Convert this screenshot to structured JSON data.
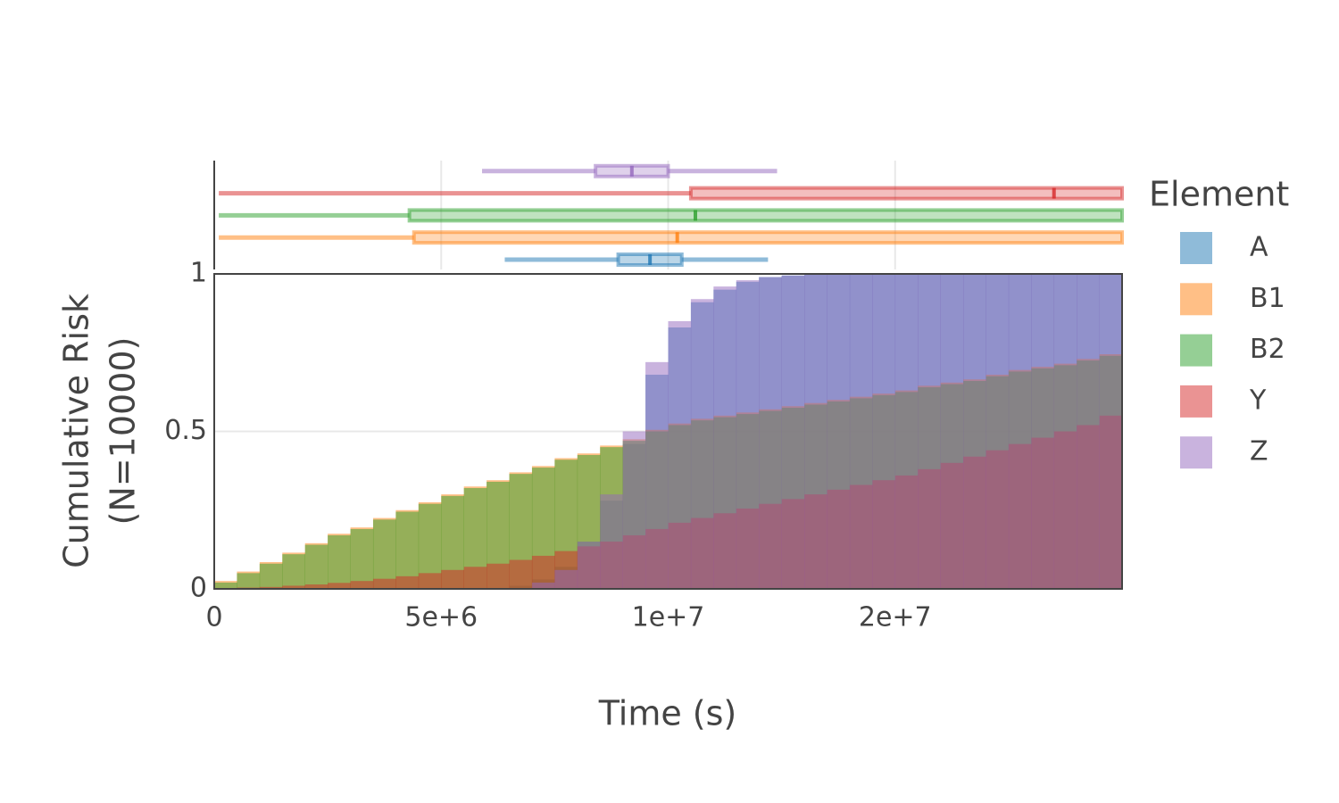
{
  "chart_data": {
    "type": "histogram",
    "cumulative": true,
    "xaxis_title": "Time (s)",
    "yaxis_title": [
      "Cumulative Risk",
      "(N=10000)"
    ],
    "legend_title": "Element",
    "legend": "right",
    "grid": true,
    "opacity": 0.5,
    "xlim": [
      0,
      20000000
    ],
    "xticks": [
      0,
      {
        "value": 5000000,
        "label": "5e+6"
      },
      {
        "value": 10000000,
        "label": "1e+7"
      },
      {
        "value": 15000000,
        "label": "2e+7"
      }
    ],
    "ylim": [
      0,
      1
    ],
    "yticks": [
      0,
      0.5,
      1
    ],
    "bins": [
      0,
      500000,
      1000000,
      1500000,
      2000000,
      2500000,
      3000000,
      3500000,
      4000000,
      4500000,
      5000000,
      5500000,
      6000000,
      6500000,
      7000000,
      7500000,
      8000000,
      8500000,
      9000000,
      9500000,
      10000000,
      10500000,
      11000000,
      11500000,
      12000000,
      12500000,
      13000000,
      13500000,
      14000000,
      14500000,
      15000000,
      15500000,
      16000000,
      16500000,
      17000000,
      17500000,
      18000000,
      18500000,
      19000000,
      19500000,
      20000000
    ],
    "series": [
      {
        "name": "A",
        "color": "#1f77b4",
        "values": [
          0,
          0,
          0,
          0,
          0,
          0,
          0,
          0,
          0,
          0,
          0,
          0,
          0.002,
          0.01,
          0.03,
          0.07,
          0.15,
          0.28,
          0.46,
          0.68,
          0.83,
          0.91,
          0.95,
          0.975,
          0.99,
          0.995,
          1,
          1,
          1,
          1,
          1,
          1,
          1,
          1,
          1,
          1,
          1,
          1,
          1,
          1
        ],
        "box": {
          "lowerfence": 6400000,
          "q1": 8900000,
          "median": 9600000,
          "q3": 10300000,
          "upperfence": 12200000
        }
      },
      {
        "name": "B1",
        "color": "#ff7f0e",
        "values": [
          0.025,
          0.055,
          0.085,
          0.115,
          0.145,
          0.175,
          0.195,
          0.225,
          0.25,
          0.275,
          0.3,
          0.325,
          0.345,
          0.37,
          0.39,
          0.415,
          0.43,
          0.455,
          0.475,
          0.505,
          0.525,
          0.54,
          0.55,
          0.56,
          0.57,
          0.58,
          0.59,
          0.6,
          0.61,
          0.62,
          0.63,
          0.645,
          0.655,
          0.665,
          0.68,
          0.695,
          0.705,
          0.715,
          0.73,
          0.745
        ],
        "box": {
          "lowerfence": 100000,
          "q1": 4400000,
          "median": 10200000,
          "q3": 20000000,
          "upperfence": 20000000
        }
      },
      {
        "name": "B2",
        "color": "#2ca02c",
        "values": [
          0.02,
          0.05,
          0.08,
          0.11,
          0.14,
          0.17,
          0.19,
          0.22,
          0.245,
          0.27,
          0.295,
          0.32,
          0.34,
          0.365,
          0.385,
          0.41,
          0.425,
          0.45,
          0.47,
          0.5,
          0.52,
          0.535,
          0.545,
          0.555,
          0.565,
          0.575,
          0.585,
          0.595,
          0.605,
          0.615,
          0.625,
          0.64,
          0.65,
          0.66,
          0.675,
          0.69,
          0.7,
          0.71,
          0.725,
          0.74
        ],
        "box": {
          "lowerfence": 100000,
          "q1": 4300000,
          "median": 10600000,
          "q3": 20000000,
          "upperfence": 20000000
        }
      },
      {
        "name": "Y",
        "color": "#d62728",
        "values": [
          0.002,
          0.004,
          0.006,
          0.01,
          0.014,
          0.019,
          0.025,
          0.032,
          0.04,
          0.05,
          0.06,
          0.07,
          0.08,
          0.092,
          0.105,
          0.12,
          0.135,
          0.15,
          0.17,
          0.19,
          0.21,
          0.225,
          0.24,
          0.255,
          0.27,
          0.285,
          0.3,
          0.315,
          0.33,
          0.345,
          0.36,
          0.38,
          0.4,
          0.42,
          0.44,
          0.46,
          0.48,
          0.5,
          0.52,
          0.55
        ],
        "box": {
          "lowerfence": 100000,
          "q1": 10500000,
          "median": 18500000,
          "q3": 20000000,
          "upperfence": 20000000
        }
      },
      {
        "name": "Z",
        "color": "#9467bd",
        "values": [
          0,
          0,
          0,
          0,
          0,
          0,
          0,
          0,
          0,
          0,
          0,
          0,
          0,
          0,
          0.02,
          0.06,
          0.15,
          0.3,
          0.5,
          0.72,
          0.85,
          0.92,
          0.96,
          0.98,
          0.99,
          0.995,
          1,
          1,
          1,
          1,
          1,
          1,
          1,
          1,
          1,
          1,
          1,
          1,
          1,
          1
        ],
        "box": {
          "lowerfence": 5900000,
          "q1": 8400000,
          "median": 9200000,
          "q3": 10000000,
          "upperfence": 12400000
        }
      }
    ]
  }
}
